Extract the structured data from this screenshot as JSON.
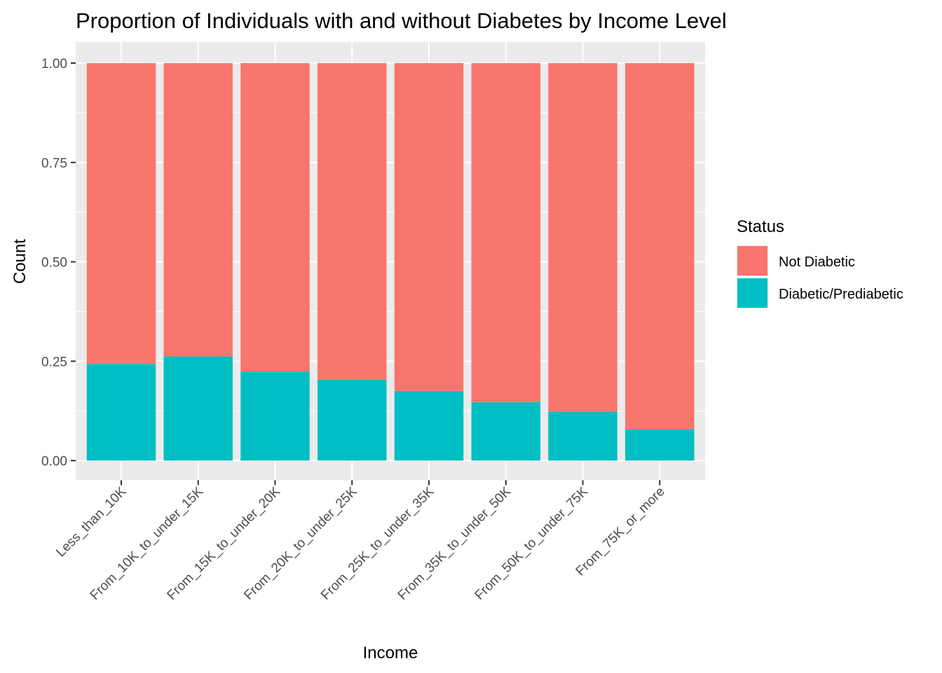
{
  "chart_data": {
    "type": "bar",
    "stacked": true,
    "title": "Proportion of Individuals with and without Diabetes by Income Level",
    "xlabel": "Income",
    "ylabel": "Count",
    "ylim": [
      0,
      1
    ],
    "yticks": [
      "0.00",
      "0.25",
      "0.50",
      "0.75",
      "1.00"
    ],
    "ytick_values": [
      0,
      0.25,
      0.5,
      0.75,
      1.0
    ],
    "grid": true,
    "legend_position": "right",
    "legend_title": "Status",
    "categories": [
      "Less_than_10K",
      "From_10K_to_under_15K",
      "From_15K_to_under_20K",
      "From_20K_to_under_25K",
      "From_25K_to_under_35K",
      "From_35K_to_under_50K",
      "From_50K_to_under_75K",
      "From_75K_or_more"
    ],
    "series": [
      {
        "name": "Not Diabetic",
        "color": "#F8766D",
        "values": [
          0.757,
          0.738,
          0.776,
          0.797,
          0.825,
          0.853,
          0.877,
          0.921
        ]
      },
      {
        "name": "Diabetic/Prediabetic",
        "color": "#00BFC4",
        "values": [
          0.243,
          0.262,
          0.224,
          0.203,
          0.175,
          0.147,
          0.123,
          0.079
        ]
      }
    ]
  }
}
